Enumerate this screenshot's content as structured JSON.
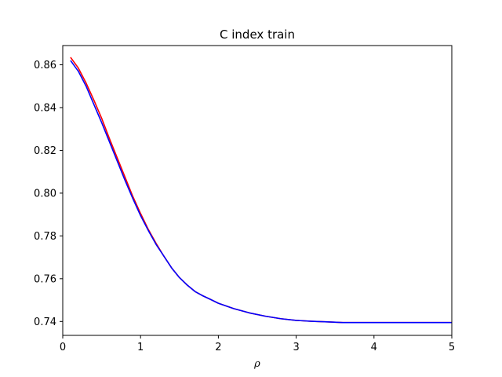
{
  "chart_data": {
    "type": "line",
    "title": "C index train",
    "xlabel": "ρ",
    "ylabel": "",
    "xlim": [
      0,
      5
    ],
    "ylim": [
      0.7335,
      0.869
    ],
    "xticks": [
      0,
      1,
      2,
      3,
      4,
      5
    ],
    "xtick_labels": [
      "0",
      "1",
      "2",
      "3",
      "4",
      "5"
    ],
    "yticks": [
      0.74,
      0.76,
      0.78,
      0.8,
      0.82,
      0.84,
      0.86
    ],
    "ytick_labels": [
      "0.74",
      "0.76",
      "0.78",
      "0.80",
      "0.82",
      "0.84",
      "0.86"
    ],
    "grid": false,
    "series": [
      {
        "color": "#ff0000",
        "x": [
          0.1,
          0.2,
          0.3,
          0.4,
          0.5,
          0.6,
          0.7,
          0.8,
          0.9,
          1.0,
          1.1,
          1.2,
          1.3,
          1.4,
          1.5,
          1.6,
          1.7,
          1.8,
          1.9,
          2.0,
          2.2,
          2.4,
          2.6,
          2.8,
          3.0,
          3.2,
          3.4,
          3.6,
          3.8,
          4.0,
          4.5,
          5.0
        ],
        "y": [
          0.8635,
          0.8585,
          0.8515,
          0.8435,
          0.835,
          0.8255,
          0.8165,
          0.8075,
          0.7985,
          0.7905,
          0.783,
          0.7765,
          0.7705,
          0.765,
          0.7605,
          0.757,
          0.754,
          0.752,
          0.7503,
          0.7485,
          0.746,
          0.744,
          0.7425,
          0.7413,
          0.7405,
          0.7401,
          0.7398,
          0.7395,
          0.7395,
          0.7395,
          0.7395,
          0.7395
        ]
      },
      {
        "color": "#0000ff",
        "x": [
          0.1,
          0.2,
          0.3,
          0.4,
          0.5,
          0.6,
          0.7,
          0.8,
          0.9,
          1.0,
          1.1,
          1.2,
          1.3,
          1.4,
          1.5,
          1.6,
          1.7,
          1.8,
          1.9,
          2.0,
          2.2,
          2.4,
          2.6,
          2.8,
          3.0,
          3.2,
          3.4,
          3.6,
          3.8,
          4.0,
          4.5,
          5.0
        ],
        "y": [
          0.862,
          0.857,
          0.85,
          0.8415,
          0.833,
          0.824,
          0.815,
          0.806,
          0.7975,
          0.7895,
          0.7825,
          0.776,
          0.7705,
          0.765,
          0.7605,
          0.757,
          0.754,
          0.752,
          0.7503,
          0.7485,
          0.746,
          0.744,
          0.7425,
          0.7413,
          0.7405,
          0.7401,
          0.7398,
          0.7395,
          0.7395,
          0.7395,
          0.7395,
          0.7395
        ]
      }
    ]
  }
}
